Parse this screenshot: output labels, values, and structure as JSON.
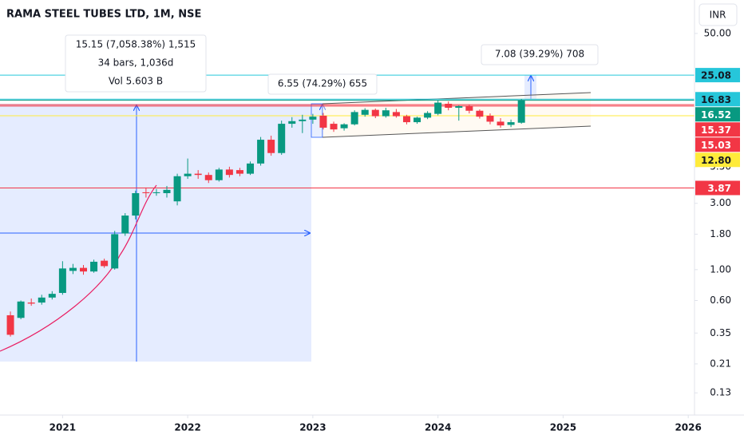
{
  "chart_data": {
    "type": "candlestick",
    "title": "RAMA STEEL TUBES LTD, 1M, NSE",
    "currency": "INR",
    "log_scale": true,
    "up_color": "#089981",
    "down_color": "#f23645",
    "x": [
      2020.5833,
      2020.6667,
      2020.75,
      2020.8333,
      2020.9167,
      2021.0,
      2021.0833,
      2021.1667,
      2021.25,
      2021.3333,
      2021.4167,
      2021.5,
      2021.5833,
      2021.6667,
      2021.75,
      2021.8333,
      2021.9167,
      2022.0,
      2022.0833,
      2022.1667,
      2022.25,
      2022.3333,
      2022.4167,
      2022.5,
      2022.5833,
      2022.6667,
      2022.75,
      2022.8333,
      2022.9167,
      2023.0,
      2023.0833,
      2023.1667,
      2023.25,
      2023.3333,
      2023.4167,
      2023.5,
      2023.5833,
      2023.6667,
      2023.75,
      2023.8333,
      2023.9167,
      2024.0,
      2024.0833,
      2024.1667,
      2024.25,
      2024.3333,
      2024.4167,
      2024.5,
      2024.5833,
      2024.6667
    ],
    "open": [
      0.47,
      0.45,
      0.58,
      0.58,
      0.63,
      0.68,
      0.98,
      1.03,
      0.97,
      1.16,
      1.02,
      1.82,
      2.45,
      3.6,
      3.55,
      3.55,
      3.1,
      4.7,
      4.9,
      4.8,
      4.4,
      5.25,
      5.2,
      4.9,
      5.8,
      8.6,
      6.9,
      11.2,
      11.7,
      12.0,
      12.8,
      11.2,
      10.4,
      11.1,
      13.0,
      14.1,
      12.7,
      13.6,
      12.7,
      11.5,
      12.4,
      13.2,
      15.6,
      14.6,
      15.0,
      13.9,
      12.8,
      11.6,
      11.0,
      11.4
    ],
    "high": [
      0.5,
      0.6,
      0.62,
      0.66,
      0.7,
      1.15,
      1.1,
      1.08,
      1.18,
      1.2,
      1.9,
      2.55,
      3.7,
      3.9,
      3.8,
      4.0,
      4.9,
      6.3,
      5.2,
      5.0,
      5.4,
      5.5,
      5.4,
      6.0,
      9.0,
      9.2,
      11.8,
      12.5,
      13.0,
      13.2,
      13.4,
      11.6,
      11.3,
      14.0,
      14.5,
      14.4,
      14.6,
      14.3,
      13.0,
      12.6,
      13.8,
      16.5,
      16.2,
      15.2,
      15.4,
      14.2,
      13.3,
      12.3,
      12.0,
      16.9
    ],
    "low": [
      0.33,
      0.44,
      0.55,
      0.56,
      0.61,
      0.66,
      0.93,
      0.92,
      0.95,
      1.03,
      1.0,
      1.75,
      2.3,
      3.3,
      3.4,
      3.3,
      2.9,
      4.5,
      4.5,
      4.2,
      4.3,
      4.6,
      4.7,
      4.8,
      5.6,
      6.6,
      6.7,
      10.5,
      9.6,
      11.2,
      10.2,
      9.8,
      10.0,
      10.9,
      12.6,
      12.3,
      12.4,
      12.4,
      11.1,
      11.2,
      12.1,
      12.9,
      14.0,
      11.8,
      13.3,
      12.2,
      11.1,
      10.5,
      10.6,
      11.2
    ],
    "close": [
      0.34,
      0.59,
      0.57,
      0.63,
      0.67,
      1.02,
      1.03,
      0.97,
      1.14,
      1.06,
      1.8,
      2.45,
      3.55,
      3.55,
      3.6,
      3.75,
      4.7,
      4.9,
      4.8,
      4.4,
      5.25,
      4.8,
      4.9,
      5.8,
      8.6,
      6.9,
      11.2,
      11.7,
      12.0,
      12.6,
      10.5,
      10.2,
      11.1,
      13.6,
      14.1,
      12.7,
      14.0,
      12.7,
      11.5,
      12.4,
      13.4,
      15.9,
      14.6,
      15.0,
      13.9,
      12.6,
      11.6,
      10.9,
      11.5,
      16.52
    ],
    "xlim": [
      2020.5,
      2026.05
    ],
    "xticks": [
      2021,
      2022,
      2023,
      2024,
      2025,
      2026
    ],
    "ylim": [
      0.09,
      87
    ],
    "yticks": [
      {
        "value": 50,
        "label": "50.00"
      },
      {
        "value": 5.5,
        "label": "5.50"
      },
      {
        "value": 3,
        "label": "3.00"
      },
      {
        "value": 1.8,
        "label": "1.80"
      },
      {
        "value": 1,
        "label": "1.00"
      },
      {
        "value": 0.6,
        "label": "0.60"
      },
      0.35,
      0.21,
      0.13
    ],
    "price_lines": [
      {
        "value": 25.08,
        "color": "#26c6da"
      },
      {
        "value": 16.83,
        "color": "#26c6da"
      },
      {
        "value": 16.52,
        "color": "#089981"
      },
      {
        "value": 15.37,
        "color": "#f23645"
      },
      {
        "value": 15.03,
        "color": "#f23645"
      },
      {
        "value": 12.8,
        "label": "12.80",
        "color": "#ffeb3b"
      },
      {
        "value": 3.87,
        "color": "#f23645"
      }
    ],
    "annotations": [
      {
        "lines": [
          "15.15 (7,058.38%) 1,515",
          "34 bars, 1,036d",
          "Vol 5.603 B"
        ]
      },
      {
        "lines": [
          "6.55 (74.29%) 655"
        ]
      },
      {
        "lines": [
          "7.08 (39.29%) 708"
        ]
      }
    ]
  }
}
